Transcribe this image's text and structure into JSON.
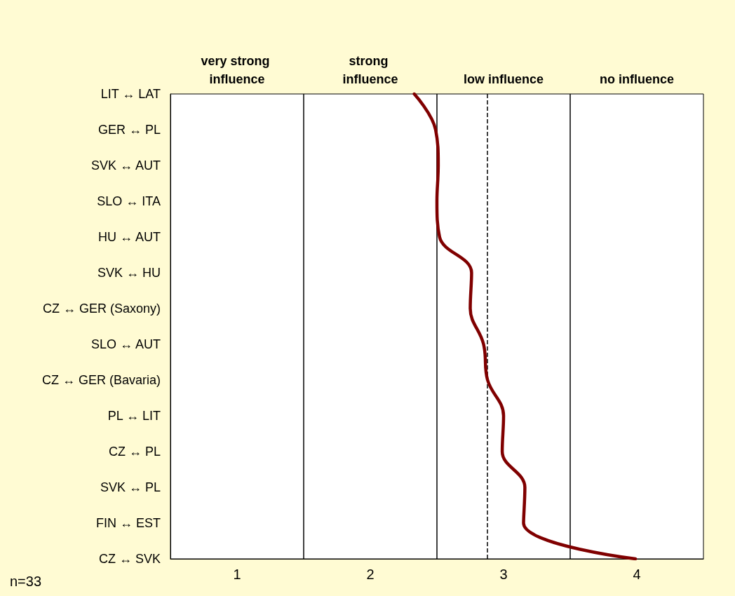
{
  "chart_data": {
    "type": "line",
    "orientation": "horizontal",
    "categories": [
      "LIT ↔ LAT",
      "GER ↔ PL",
      "SVK ↔ AUT",
      "SLO ↔ ITA",
      "HU ↔ AUT",
      "SVK ↔ HU",
      "CZ ↔ GER (Saxony)",
      "SLO ↔ AUT",
      "CZ ↔ GER (Bavaria)",
      "PL ↔ LIT",
      "CZ ↔ PL",
      "SVK ↔ PL",
      "FIN ↔ EST",
      "CZ ↔ SVK"
    ],
    "series": [
      {
        "color": "#800000",
        "values": [
          2.33,
          2.49,
          2.51,
          2.5,
          2.52,
          2.76,
          2.75,
          2.85,
          2.88,
          3.0,
          2.99,
          3.16,
          3.15,
          3.99
        ]
      }
    ],
    "xlim": [
      0.5,
      4.5
    ],
    "xticks": [
      1,
      2,
      3,
      4
    ],
    "ref_lines": [
      {
        "axis": "x",
        "value": 1.5,
        "color": "#000000",
        "line_style": "solid"
      },
      {
        "axis": "x",
        "value": 2.5,
        "color": "#000000",
        "line_style": "solid"
      },
      {
        "axis": "x",
        "value": 3.5,
        "color": "#000000",
        "line_style": "solid"
      },
      {
        "axis": "x",
        "value": 2.88,
        "color": "#000000",
        "line_style": "dashed"
      }
    ],
    "marker": "none",
    "line_style": "solid",
    "grid": false,
    "annotations": [
      "n=33",
      "very strong influence",
      "strong influence",
      "low influence",
      "no influence"
    ]
  }
}
